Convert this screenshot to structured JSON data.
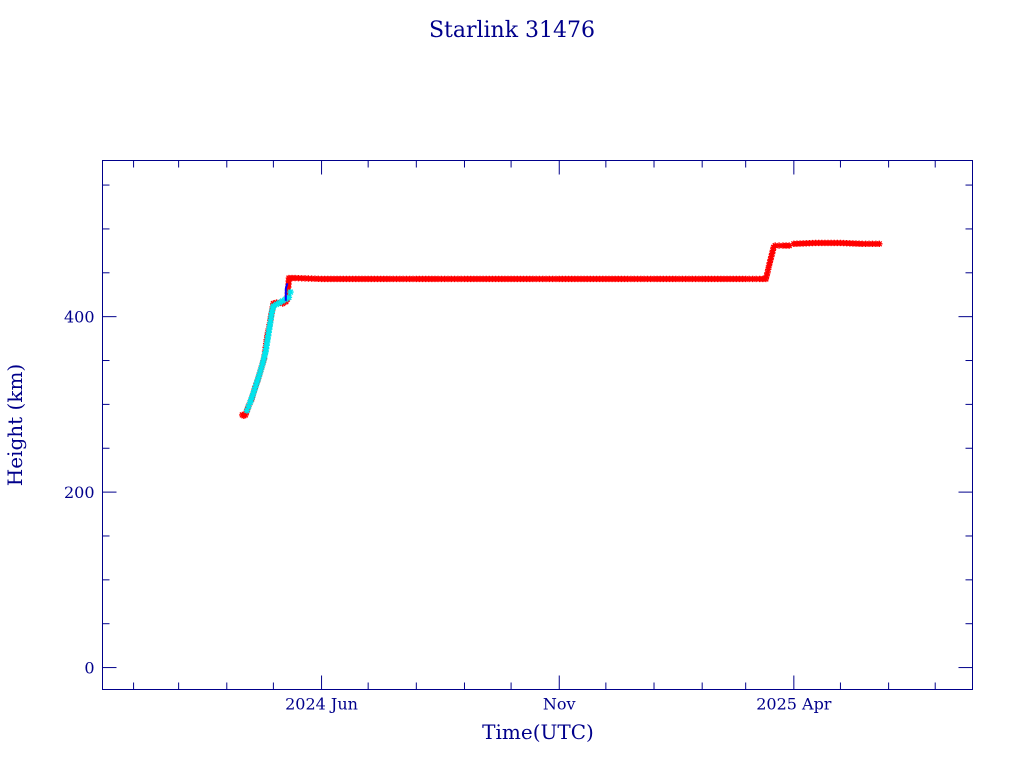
{
  "colors": {
    "axis": "#00008b",
    "text": "#00008b",
    "background": "#ffffff",
    "series_red": "#ff0000",
    "series_cyan": "#00e5ee",
    "series_blue": "#0000ff"
  },
  "chart_data": {
    "type": "scatter",
    "title": "Starlink 31476",
    "xlabel": "Time(UTC)",
    "ylabel": "Height (km)",
    "x_range": [
      "2024-01-12",
      "2025-07-25"
    ],
    "ylim": [
      -25,
      578
    ],
    "x_major_ticks": [
      {
        "date": "2024-06-01",
        "label": "2024 Jun"
      },
      {
        "date": "2024-11-01",
        "label": "Nov"
      },
      {
        "date": "2025-04-01",
        "label": "2025 Apr"
      }
    ],
    "x_minor_tick_dates": [
      "2024-02-01",
      "2024-03-01",
      "2024-04-01",
      "2024-05-01",
      "2024-07-01",
      "2024-08-01",
      "2024-09-01",
      "2024-10-01",
      "2024-12-01",
      "2025-01-01",
      "2025-02-01",
      "2025-03-01",
      "2025-05-01",
      "2025-06-01",
      "2025-07-01"
    ],
    "y_major_ticks": [
      0,
      200,
      400
    ],
    "y_minor_step": 50,
    "grid": false,
    "series": [
      {
        "color": "red",
        "marker": "star",
        "points": [
          {
            "x": "2024-04-11",
            "y": 288
          },
          {
            "x": "2024-04-12",
            "y": 287
          },
          {
            "x": "2024-04-13",
            "y": 288
          },
          {
            "x": "2024-04-15",
            "y": 298
          },
          {
            "x": "2024-04-17",
            "y": 306
          },
          {
            "x": "2024-04-19",
            "y": 318
          },
          {
            "x": "2024-04-21",
            "y": 328
          },
          {
            "x": "2024-04-23",
            "y": 340
          },
          {
            "x": "2024-04-25",
            "y": 352
          },
          {
            "x": "2024-04-26",
            "y": 365
          },
          {
            "x": "2024-04-27",
            "y": 378
          },
          {
            "x": "2024-04-28",
            "y": 386
          },
          {
            "x": "2024-04-29",
            "y": 396
          },
          {
            "x": "2024-05-01",
            "y": 415
          },
          {
            "x": "2024-05-03",
            "y": 416
          },
          {
            "x": "2024-05-05",
            "y": 416
          },
          {
            "x": "2024-05-07",
            "y": 415
          },
          {
            "x": "2024-05-09",
            "y": 417
          },
          {
            "x": "2024-05-10",
            "y": 420
          },
          {
            "x": "2024-05-11",
            "y": 444
          },
          {
            "x": "2024-05-15",
            "y": 444
          },
          {
            "x": "2024-06-01",
            "y": 443
          },
          {
            "x": "2024-06-15",
            "y": 443
          },
          {
            "x": "2024-07-01",
            "y": 443
          },
          {
            "x": "2024-07-15",
            "y": 443
          },
          {
            "x": "2024-08-01",
            "y": 443
          },
          {
            "x": "2024-08-15",
            "y": 443
          },
          {
            "x": "2024-09-01",
            "y": 443
          },
          {
            "x": "2024-09-15",
            "y": 443
          },
          {
            "x": "2024-10-01",
            "y": 443
          },
          {
            "x": "2024-10-15",
            "y": 443
          },
          {
            "x": "2024-11-01",
            "y": 443
          },
          {
            "x": "2024-11-15",
            "y": 443
          },
          {
            "x": "2024-12-01",
            "y": 443
          },
          {
            "x": "2024-12-15",
            "y": 443
          },
          {
            "x": "2025-01-01",
            "y": 443
          },
          {
            "x": "2025-01-15",
            "y": 443
          },
          {
            "x": "2025-02-01",
            "y": 443
          },
          {
            "x": "2025-02-15",
            "y": 443
          },
          {
            "x": "2025-03-01",
            "y": 443
          },
          {
            "x": "2025-03-10",
            "y": 443
          },
          {
            "x": "2025-03-14",
            "y": 443
          },
          {
            "x": "2025-03-15",
            "y": 450
          },
          {
            "x": "2025-03-16",
            "y": 458
          },
          {
            "x": "2025-03-17",
            "y": 465
          },
          {
            "x": "2025-03-18",
            "y": 472
          },
          {
            "x": "2025-03-19",
            "y": 479
          },
          {
            "x": "2025-03-20",
            "y": 481
          },
          {
            "x": "2025-03-25",
            "y": 481
          },
          {
            "x": "2025-03-29",
            "y": 481
          },
          {
            "x": "2025-04-01",
            "y": 483
          },
          {
            "x": "2025-04-15",
            "y": 484
          },
          {
            "x": "2025-05-01",
            "y": 484
          },
          {
            "x": "2025-05-15",
            "y": 483
          },
          {
            "x": "2025-05-26",
            "y": 483
          }
        ]
      },
      {
        "color": "cyan",
        "marker": "star",
        "points": [
          {
            "x": "2024-04-14",
            "y": 293
          },
          {
            "x": "2024-04-16",
            "y": 302
          },
          {
            "x": "2024-04-18",
            "y": 312
          },
          {
            "x": "2024-04-20",
            "y": 323
          },
          {
            "x": "2024-04-22",
            "y": 334
          },
          {
            "x": "2024-04-24",
            "y": 346
          },
          {
            "x": "2024-04-26",
            "y": 360
          },
          {
            "x": "2024-04-28",
            "y": 382
          },
          {
            "x": "2024-04-29",
            "y": 393
          },
          {
            "x": "2024-04-30",
            "y": 405
          },
          {
            "x": "2024-05-01",
            "y": 412
          },
          {
            "x": "2024-05-11",
            "y": 422
          },
          {
            "x": "2024-05-12",
            "y": 428
          }
        ]
      },
      {
        "color": "blue",
        "marker": "line",
        "points": [
          {
            "x": "2024-05-09",
            "y": 418
          },
          {
            "x": "2024-05-09",
            "y": 432
          },
          {
            "x": "2024-05-10",
            "y": 438
          }
        ]
      }
    ]
  }
}
